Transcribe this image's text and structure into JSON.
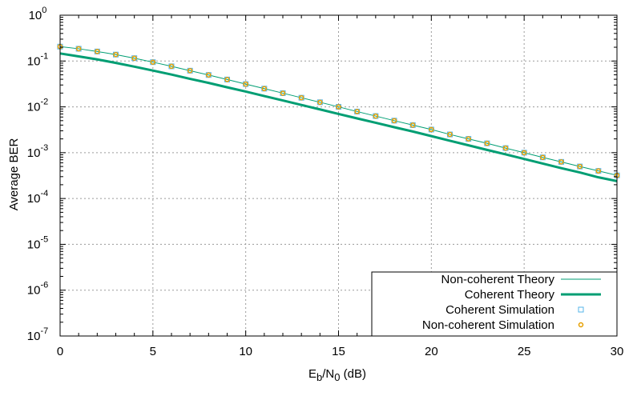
{
  "chart_data": {
    "type": "line",
    "title": "",
    "xlabel": {
      "main": "E",
      "sub1": "b",
      "mid": "/N",
      "sub2": "0",
      "tail": " (dB)"
    },
    "ylabel": "Average BER",
    "xlim": [
      0,
      30
    ],
    "ylim": [
      1e-07,
      1
    ],
    "yscale": "log",
    "grid": true,
    "legend_position": "bottom-right",
    "x_ticks": [
      "0",
      "5",
      "10",
      "15",
      "20",
      "25",
      "30"
    ],
    "y_ticks": [
      {
        "base": "10",
        "exp": "0"
      },
      {
        "base": "10",
        "exp": "-1"
      },
      {
        "base": "10",
        "exp": "-2"
      },
      {
        "base": "10",
        "exp": "-3"
      },
      {
        "base": "10",
        "exp": "-4"
      },
      {
        "base": "10",
        "exp": "-5"
      },
      {
        "base": "10",
        "exp": "-6"
      },
      {
        "base": "10",
        "exp": "-7"
      }
    ],
    "x": [
      0,
      1,
      2,
      3,
      4,
      5,
      6,
      7,
      8,
      9,
      10,
      11,
      12,
      13,
      14,
      15,
      16,
      17,
      18,
      19,
      20,
      21,
      22,
      23,
      24,
      25,
      26,
      27,
      28,
      29,
      30
    ],
    "series": [
      {
        "name": "Non-coherent Theory",
        "style": "line",
        "color": "#009e73",
        "width": 1,
        "values": [
          0.2063,
          0.1853,
          0.1615,
          0.1383,
          0.1154,
          0.0945,
          0.0767,
          0.0616,
          0.0496,
          0.0395,
          0.0314,
          0.025,
          0.0199,
          0.0158,
          0.0126,
          0.01,
          0.0079,
          0.0063,
          0.005,
          0.004,
          0.0032,
          0.0025,
          0.002,
          0.0016,
          0.00126,
          0.001,
          0.00079,
          0.00063,
          0.0005,
          0.0004,
          0.00032
        ]
      },
      {
        "name": "Coherent Theory",
        "style": "line",
        "color": "#009e73",
        "width": 3,
        "values": [
          0.1464,
          0.1264,
          0.1085,
          0.091,
          0.0754,
          0.062,
          0.0507,
          0.0409,
          0.0333,
          0.0267,
          0.0216,
          0.0172,
          0.0138,
          0.011,
          0.0088,
          0.007,
          0.0056,
          0.0045,
          0.0036,
          0.0029,
          0.0023,
          0.00182,
          0.00145,
          0.00115,
          0.00092,
          0.00073,
          0.00058,
          0.00046,
          0.00037,
          0.00029,
          0.00024
        ]
      },
      {
        "name": "Coherent Simulation",
        "style": "marker",
        "marker": "square",
        "color": "#56b4e9",
        "values": [
          0.2063,
          0.1853,
          0.1615,
          0.1383,
          0.1154,
          0.0945,
          0.0767,
          0.0616,
          0.0496,
          0.0395,
          0.0314,
          0.025,
          0.0199,
          0.0158,
          0.0126,
          0.01,
          0.0079,
          0.0063,
          0.005,
          0.004,
          0.0032,
          0.0025,
          0.002,
          0.0016,
          0.00126,
          0.001,
          0.00079,
          0.00063,
          0.0005,
          0.0004,
          0.00032
        ]
      },
      {
        "name": "Non-coherent Simulation",
        "style": "marker",
        "marker": "circle",
        "color": "#e69f00",
        "values": [
          0.2063,
          0.1853,
          0.1615,
          0.1383,
          0.1154,
          0.0945,
          0.0767,
          0.0616,
          0.0496,
          0.0395,
          0.0314,
          0.025,
          0.0199,
          0.0158,
          0.0126,
          0.01,
          0.0079,
          0.0063,
          0.005,
          0.004,
          0.0032,
          0.0025,
          0.002,
          0.0016,
          0.00126,
          0.001,
          0.00079,
          0.00063,
          0.0005,
          0.0004,
          0.00032
        ]
      }
    ]
  }
}
